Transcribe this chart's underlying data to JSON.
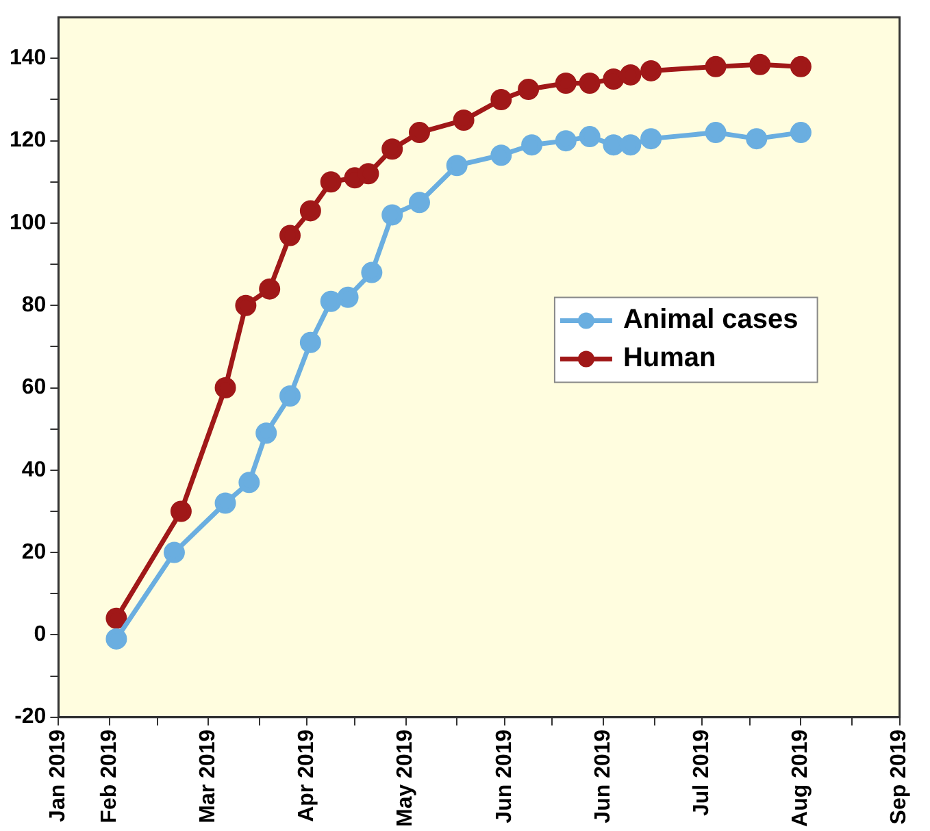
{
  "chart_data": {
    "type": "line",
    "x": [
      "2019-02-07",
      "2019-02-24",
      "2019-03-11",
      "2019-03-18",
      "2019-03-23",
      "2019-03-30",
      "2019-04-05",
      "2019-04-11",
      "2019-04-16",
      "2019-04-23",
      "2019-04-29",
      "2019-05-07",
      "2019-05-18",
      "2019-05-31",
      "2019-06-09",
      "2019-06-19",
      "2019-06-26",
      "2019-07-03",
      "2019-07-08",
      "2019-07-14",
      "2019-08-02",
      "2019-08-14",
      "2019-08-27"
    ],
    "series": [
      {
        "name": "Animal cases",
        "color": "#6aaee0",
        "values": [
          -1,
          20,
          32,
          37,
          49,
          58,
          71,
          81,
          82,
          88,
          102,
          105,
          114,
          116.5,
          119,
          120,
          121,
          119,
          119,
          120.5,
          122,
          120.5,
          122
        ]
      },
      {
        "name": "Human",
        "color": "#a01818",
        "x": [
          "2019-02-07",
          "2019-02-26",
          "2019-03-11",
          "2019-03-17",
          "2019-03-24",
          "2019-03-30",
          "2019-04-05",
          "2019-04-11",
          "2019-04-18",
          "2019-04-22",
          "2019-04-29",
          "2019-05-07",
          "2019-05-20",
          "2019-05-31",
          "2019-06-08",
          "2019-06-19",
          "2019-06-26",
          "2019-07-03",
          "2019-07-08",
          "2019-07-14",
          "2019-08-02",
          "2019-08-15",
          "2019-08-27"
        ],
        "values": [
          4,
          30,
          60,
          80,
          84,
          97,
          103,
          110,
          111,
          112,
          118,
          122,
          125,
          130,
          132.5,
          134,
          134,
          135,
          136,
          137,
          138,
          138.5,
          138
        ]
      }
    ],
    "xlim": [
      "2019-01-21",
      "2019-09-25"
    ],
    "xticks": [
      {
        "value": "2019-01-21",
        "label": "Jan 2019"
      },
      {
        "value": "2019-02-05",
        "label": "Feb 2019"
      },
      {
        "value": "2019-02-19",
        "label": null
      },
      {
        "value": "2019-03-06",
        "label": "Mar 2019"
      },
      {
        "value": "2019-03-21",
        "label": null
      },
      {
        "value": "2019-04-04",
        "label": "Apr 2019"
      },
      {
        "value": "2019-04-18",
        "label": null
      },
      {
        "value": "2019-05-03",
        "label": "May 2019"
      },
      {
        "value": "2019-05-18",
        "label": null
      },
      {
        "value": "2019-06-01",
        "label": "Jun 2019"
      },
      {
        "value": "2019-06-15",
        "label": null
      },
      {
        "value": "2019-06-30",
        "label": "Jun 2019"
      },
      {
        "value": "2019-07-15",
        "label": null
      },
      {
        "value": "2019-07-29",
        "label": "Jul 2019"
      },
      {
        "value": "2019-08-12",
        "label": null
      },
      {
        "value": "2019-08-27",
        "label": "Aug 2019"
      },
      {
        "value": "2019-09-11",
        "label": null
      },
      {
        "value": "2019-09-25",
        "label": "Sep 2019"
      }
    ],
    "ylim": [
      -20,
      150
    ],
    "yticks": [
      -20,
      {
        "value": -10,
        "label": null
      },
      0,
      {
        "value": 10,
        "label": null
      },
      20,
      {
        "value": 30,
        "label": null
      },
      40,
      {
        "value": 50,
        "label": null
      },
      60,
      {
        "value": 70,
        "label": null
      },
      80,
      {
        "value": 90,
        "label": null
      },
      100,
      {
        "value": 110,
        "label": null
      },
      120,
      {
        "value": 130,
        "label": null
      },
      140
    ],
    "grid": false,
    "legend": "right",
    "marker": "circle",
    "line_style": "solid"
  }
}
